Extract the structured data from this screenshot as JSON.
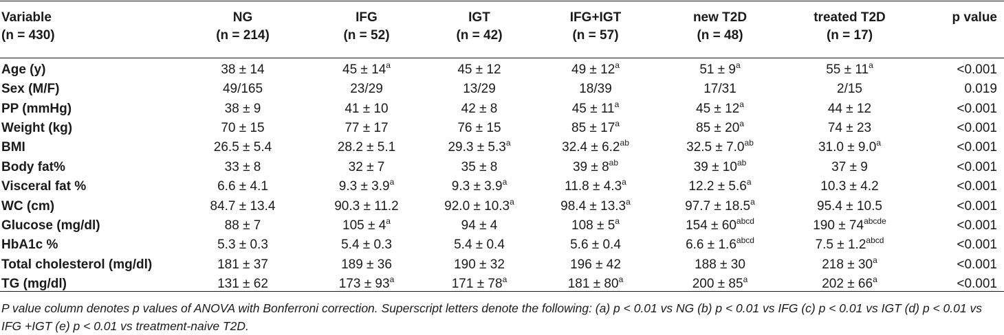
{
  "header": [
    {
      "line1": "Variable",
      "line2": "(n = 430)"
    },
    {
      "line1": "NG",
      "line2": "(n = 214)"
    },
    {
      "line1": "IFG",
      "line2": "(n = 52)"
    },
    {
      "line1": "IGT",
      "line2": "(n = 42)"
    },
    {
      "line1": "IFG+IGT",
      "line2": "(n = 57)"
    },
    {
      "line1": "new T2D",
      "line2": "(n = 48)"
    },
    {
      "line1": "treated T2D",
      "line2": "(n = 17)"
    },
    {
      "line1": "p value",
      "line2": ""
    }
  ],
  "rows": [
    {
      "label": "Age (y)",
      "cells": [
        [
          "38 ± 14",
          ""
        ],
        [
          "45 ± 14",
          "a"
        ],
        [
          "45 ± 12",
          ""
        ],
        [
          "49 ± 12",
          "a"
        ],
        [
          "51 ± 9",
          "a"
        ],
        [
          "55 ± 11",
          "a"
        ]
      ],
      "p": "<0.001"
    },
    {
      "label": "Sex (M/F)",
      "cells": [
        [
          "49/165",
          ""
        ],
        [
          "23/29",
          ""
        ],
        [
          "13/29",
          ""
        ],
        [
          "18/39",
          ""
        ],
        [
          "17/31",
          ""
        ],
        [
          "2/15",
          ""
        ]
      ],
      "p": "0.019"
    },
    {
      "label": "PP (mmHg)",
      "cells": [
        [
          "38 ± 9",
          ""
        ],
        [
          "41 ± 10",
          ""
        ],
        [
          "42 ± 8",
          ""
        ],
        [
          "45 ± 11",
          "a"
        ],
        [
          "45 ± 12",
          "a"
        ],
        [
          "44 ± 12",
          ""
        ]
      ],
      "p": "<0.001"
    },
    {
      "label": "Weight (kg)",
      "cells": [
        [
          "70 ± 15",
          ""
        ],
        [
          "77 ± 17",
          ""
        ],
        [
          "76 ± 15",
          ""
        ],
        [
          "85 ± 17",
          "a"
        ],
        [
          "85 ± 20",
          "a"
        ],
        [
          "74 ± 23",
          ""
        ]
      ],
      "p": "<0.001"
    },
    {
      "label": "BMI",
      "cells": [
        [
          "26.5 ± 5.4",
          ""
        ],
        [
          "28.2 ± 5.1",
          ""
        ],
        [
          "29.3 ± 5.3",
          "a"
        ],
        [
          "32.4 ± 6.2",
          "ab"
        ],
        [
          "32.5 ± 7.0",
          "ab"
        ],
        [
          "31.0 ± 9.0",
          "a"
        ]
      ],
      "p": "<0.001"
    },
    {
      "label": "Body fat%",
      "cells": [
        [
          "33 ± 8",
          ""
        ],
        [
          "32 ± 7",
          ""
        ],
        [
          "35 ± 8",
          ""
        ],
        [
          "39 ± 8",
          "ab"
        ],
        [
          "39 ± 10",
          "ab"
        ],
        [
          "37 ± 9",
          ""
        ]
      ],
      "p": "<0.001"
    },
    {
      "label": "Visceral fat %",
      "cells": [
        [
          "6.6 ± 4.1",
          ""
        ],
        [
          "9.3 ± 3.9",
          "a"
        ],
        [
          "9.3 ± 3.9",
          "a"
        ],
        [
          "11.8 ± 4.3",
          "a"
        ],
        [
          "12.2 ± 5.6",
          "a"
        ],
        [
          "10.3 ± 4.2",
          ""
        ]
      ],
      "p": "<0.001"
    },
    {
      "label": "WC (cm)",
      "cells": [
        [
          "84.7 ± 13.4",
          ""
        ],
        [
          "90.3 ± 11.2",
          ""
        ],
        [
          "92.0 ± 10.3",
          "a"
        ],
        [
          "98.4 ± 13.3",
          "a"
        ],
        [
          "97.7 ± 18.5",
          "a"
        ],
        [
          "95.4 ± 10.5",
          ""
        ]
      ],
      "p": "<0.001"
    },
    {
      "label": "Glucose (mg/dl)",
      "cells": [
        [
          "88 ± 7",
          ""
        ],
        [
          "105 ± 4",
          "a"
        ],
        [
          "94 ± 4",
          ""
        ],
        [
          "108 ± 5",
          "a"
        ],
        [
          "154 ± 60",
          "abcd"
        ],
        [
          "190 ± 74",
          "abcde"
        ]
      ],
      "p": "<0.001"
    },
    {
      "label": "HbA1c %",
      "cells": [
        [
          "5.3 ± 0.3",
          ""
        ],
        [
          "5.4 ± 0.3",
          ""
        ],
        [
          "5.4 ± 0.4",
          ""
        ],
        [
          "5.6 ± 0.4",
          ""
        ],
        [
          "6.6 ± 1.6",
          "abcd"
        ],
        [
          "7.5 ± 1.2",
          "abcd"
        ]
      ],
      "p": "<0.001"
    },
    {
      "label": "Total cholesterol (mg/dl)",
      "cells": [
        [
          "181 ± 37",
          ""
        ],
        [
          "189 ± 36",
          ""
        ],
        [
          "190 ± 32",
          ""
        ],
        [
          "196 ± 42",
          ""
        ],
        [
          "188 ± 30",
          ""
        ],
        [
          "218 ± 30",
          "a"
        ]
      ],
      "p": "<0.001"
    },
    {
      "label": "TG (mg/dl)",
      "cells": [
        [
          "131 ± 62",
          ""
        ],
        [
          "173 ± 93",
          "a"
        ],
        [
          "171 ± 78",
          "a"
        ],
        [
          "181 ± 80",
          "a"
        ],
        [
          "200 ± 85",
          "a"
        ],
        [
          "202 ± 66",
          "a"
        ]
      ],
      "p": "<0.001"
    }
  ],
  "footnote": "P value column denotes p values of ANOVA with Bonferroni correction. Superscript letters denote the following: (a) p < 0.01 vs NG (b) p < 0.01 vs IFG (c) p < 0.01 vs IGT (d) p < 0.01 vs IFG +IGT (e) p < 0.01 vs treatment-naive T2D."
}
